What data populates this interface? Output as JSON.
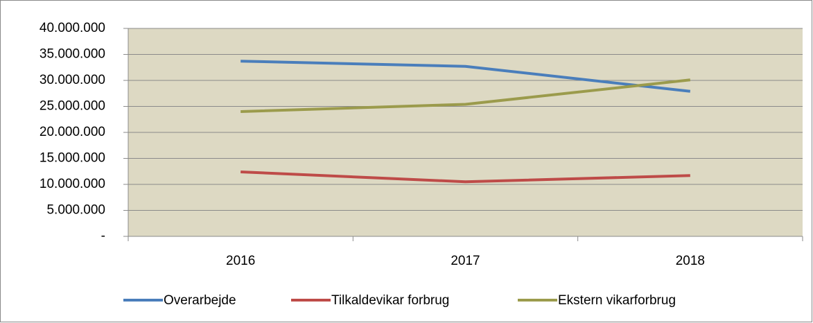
{
  "chart_data": {
    "type": "line",
    "categories": [
      "2016",
      "2017",
      "2018"
    ],
    "series": [
      {
        "name": "Overarbejde",
        "color": "#4a7ebb",
        "values": [
          33700000,
          32700000,
          27900000
        ]
      },
      {
        "name": "Tilkaldevikar forbrug",
        "color": "#be4b48",
        "values": [
          12400000,
          10500000,
          11700000
        ]
      },
      {
        "name": "Ekstern vikarforbrug",
        "color": "#9b9b4c",
        "values": [
          24000000,
          25400000,
          30100000
        ]
      }
    ],
    "ylim": [
      0,
      40000000
    ],
    "yticks": [
      {
        "value": 0,
        "label": "-"
      },
      {
        "value": 5000000,
        "label": "5.000.000"
      },
      {
        "value": 10000000,
        "label": "10.000.000"
      },
      {
        "value": 15000000,
        "label": "15.000.000"
      },
      {
        "value": 20000000,
        "label": "20.000.000"
      },
      {
        "value": 25000000,
        "label": "25.000.000"
      },
      {
        "value": 30000000,
        "label": "30.000.000"
      },
      {
        "value": 35000000,
        "label": "35.000.000"
      },
      {
        "value": 40000000,
        "label": "40.000.000"
      }
    ],
    "grid": true,
    "legend": "bottom",
    "plot_background": "#ddd9c3"
  }
}
